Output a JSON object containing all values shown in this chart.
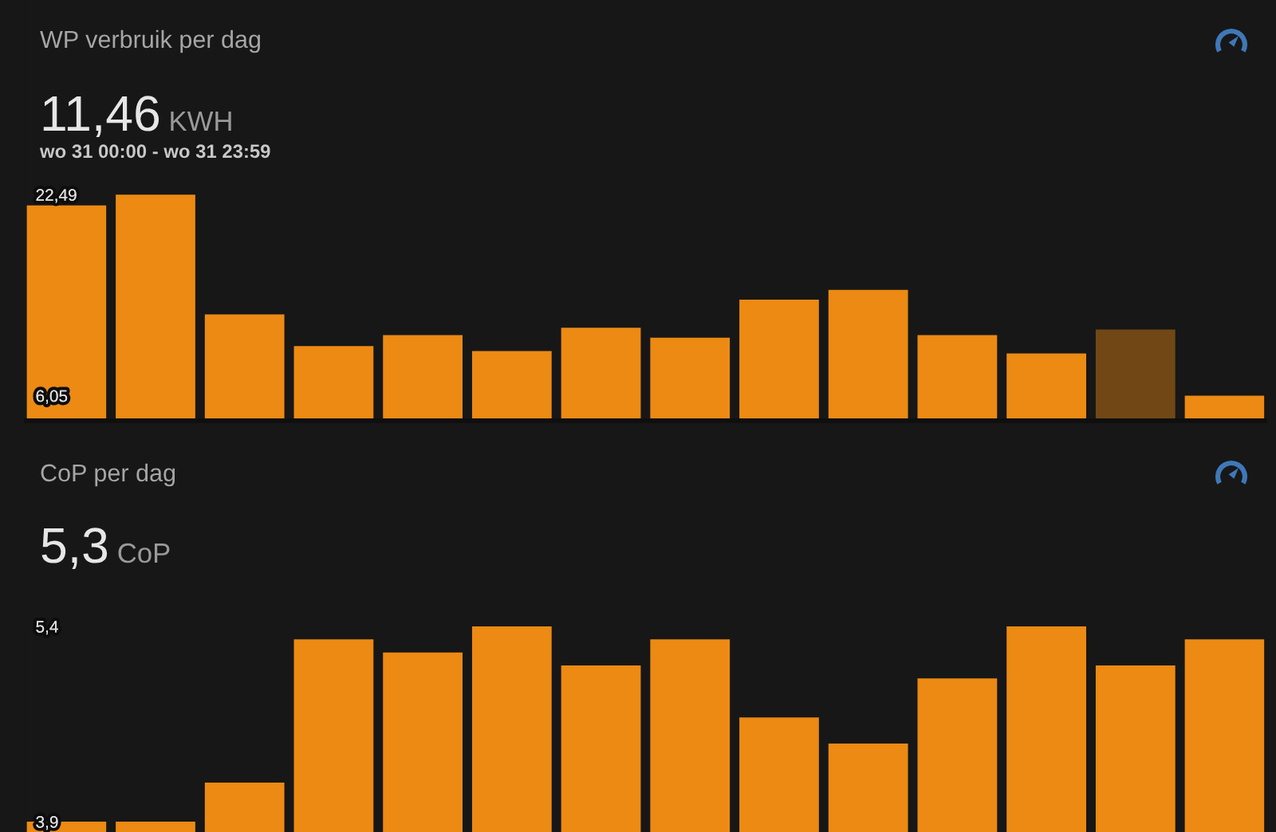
{
  "chart_data": [
    {
      "type": "bar",
      "title": "WP verbruik per dag",
      "annotations": [
        "11,46",
        "KWH",
        "wo 31 00:00 - wo 31 23:59"
      ],
      "categories": [
        null,
        null,
        null,
        null,
        null,
        null,
        null,
        null,
        null,
        null,
        null,
        null,
        null,
        null
      ],
      "values": [
        21.6,
        22.49,
        12.7,
        10.1,
        11.0,
        9.7,
        11.6,
        10.8,
        13.9,
        14.7,
        11.0,
        9.5,
        11.46,
        6.05
      ],
      "colors": [
        "#ec8a13",
        "#ec8a13",
        "#ec8a13",
        "#ec8a13",
        "#ec8a13",
        "#ec8a13",
        "#ec8a13",
        "#ec8a13",
        "#ec8a13",
        "#ec8a13",
        "#ec8a13",
        "#ec8a13",
        "#714815",
        "#ec8a13"
      ],
      "ylim": [
        4.0,
        38.4
      ],
      "yticks": [
        {
          "value": 22.49,
          "label": "22,49"
        },
        {
          "value": 6.05,
          "label": "6,05"
        }
      ],
      "tick_labels": "y"
    },
    {
      "type": "bar",
      "title": "CoP per dag",
      "annotations": [
        "5,3",
        "CoP"
      ],
      "categories": [
        null,
        null,
        null,
        null,
        null,
        null,
        null,
        null,
        null,
        null,
        null,
        null,
        null,
        null
      ],
      "values": [
        3.9,
        3.9,
        4.2,
        5.3,
        5.2,
        5.4,
        5.1,
        5.3,
        4.7,
        4.5,
        5.0,
        5.4,
        5.1,
        5.3
      ],
      "color": "#ec8a13",
      "ylim": [
        3.82,
        5.4
      ],
      "yticks": [
        {
          "value": 5.4,
          "label": "5,4"
        },
        {
          "value": 3.9,
          "label": "3,9"
        }
      ],
      "tick_labels": "y"
    }
  ]
}
